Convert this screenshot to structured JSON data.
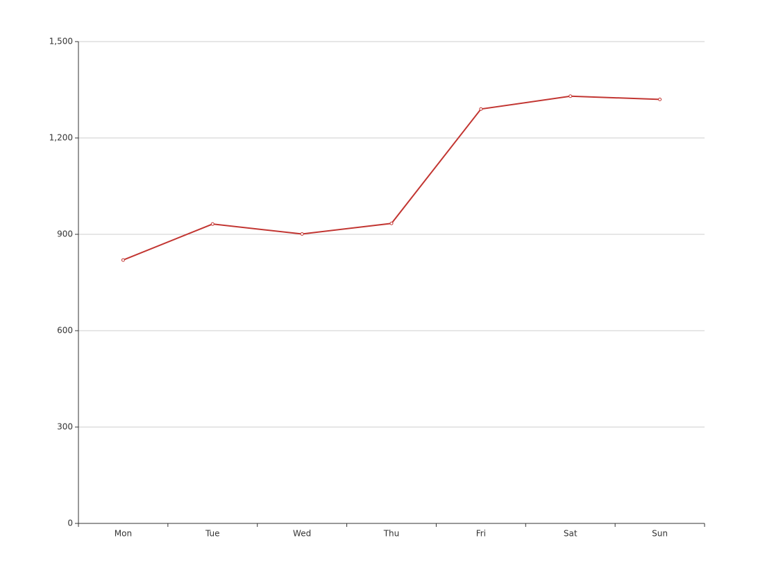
{
  "chart_data": {
    "type": "line",
    "categories": [
      "Mon",
      "Tue",
      "Wed",
      "Thu",
      "Fri",
      "Sat",
      "Sun"
    ],
    "values": [
      820,
      932,
      901,
      934,
      1290,
      1330,
      1320
    ],
    "color": "#c23531",
    "ylim": [
      0,
      1500
    ],
    "yticks": [
      0,
      300,
      600,
      900,
      {
        "value": 1200,
        "label": "1,200"
      },
      {
        "value": 1500,
        "label": "1,500"
      }
    ],
    "grid": true
  }
}
